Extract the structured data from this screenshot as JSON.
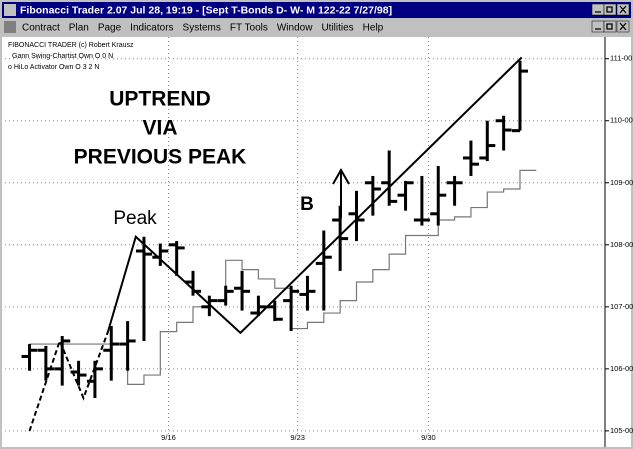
{
  "window": {
    "title": "Fibonacci Trader 2.07 Jul 28,  19:19 - [Sept T-Bonds D- W- M  122-22 7/27/98]",
    "menu": [
      "Contract",
      "Plan",
      "Page",
      "Indicators",
      "Systems",
      "FT Tools",
      "Window",
      "Utilities",
      "Help"
    ]
  },
  "chart_data": {
    "type": "ohlc",
    "legend": [
      "FIBONACCI TRADER (c) Robert Krausz",
      "Gann Swing-Chartist Own O 0 N",
      "o HiLo Activator Own O 3 2 N"
    ],
    "annotations": [
      "UPTREND",
      "VIA",
      "PREVIOUS PEAK",
      "Peak",
      "B"
    ],
    "xlim": [
      -1.5,
      35.2
    ],
    "xticks": [
      {
        "value": 8.5,
        "label": "9/16"
      },
      {
        "value": 16.4,
        "label": "9/23"
      },
      {
        "value": 24.4,
        "label": "9/30"
      }
    ],
    "ylim": [
      104.95,
      111.35
    ],
    "yticks": [
      {
        "value": 105,
        "label": "105-00"
      },
      {
        "value": 106,
        "label": "106-00"
      },
      {
        "value": 107,
        "label": "107-00"
      },
      {
        "value": 108,
        "label": "108-00"
      },
      {
        "value": 109,
        "label": "109-00"
      },
      {
        "value": 110,
        "label": "110-00"
      },
      {
        "value": 111,
        "label": "111-00"
      }
    ],
    "grid": true,
    "color": "#000000",
    "bars": [
      [
        106.2,
        106.4,
        105.97,
        106.3
      ],
      [
        106.3,
        106.37,
        105.81,
        106.0
      ],
      [
        106.0,
        106.53,
        105.73,
        106.45
      ],
      [
        105.95,
        106.13,
        105.73,
        105.9
      ],
      [
        105.8,
        106.13,
        105.53,
        106.0
      ],
      [
        106.3,
        106.69,
        105.81,
        106.4
      ],
      [
        106.4,
        106.77,
        105.97,
        106.45
      ],
      [
        107.9,
        108.13,
        106.45,
        107.85
      ],
      [
        107.8,
        108.02,
        107.66,
        107.9
      ],
      [
        108.0,
        108.06,
        107.5,
        107.95
      ],
      [
        107.4,
        107.58,
        107.18,
        107.25
      ],
      [
        107.0,
        107.18,
        106.85,
        107.1
      ],
      [
        107.1,
        107.34,
        107.02,
        107.25
      ],
      [
        107.3,
        107.58,
        106.94,
        107.25
      ],
      [
        106.9,
        107.18,
        106.85,
        107.0
      ],
      [
        107.0,
        107.1,
        106.77,
        106.8
      ],
      [
        107.1,
        107.34,
        106.61,
        107.25
      ],
      [
        107.2,
        107.5,
        106.94,
        107.25
      ],
      [
        107.7,
        108.23,
        106.94,
        107.8
      ],
      [
        108.4,
        108.63,
        107.58,
        108.1
      ],
      [
        108.5,
        108.87,
        108.06,
        108.4
      ],
      [
        109.0,
        109.11,
        108.47,
        108.9
      ],
      [
        109.0,
        109.52,
        108.63,
        108.7
      ],
      [
        108.8,
        109.03,
        108.55,
        109.0
      ],
      [
        108.4,
        109.11,
        108.31,
        108.4
      ],
      [
        108.5,
        109.27,
        108.31,
        108.8
      ],
      [
        109.0,
        109.11,
        108.63,
        109.0
      ],
      [
        109.4,
        109.68,
        109.11,
        109.3
      ],
      [
        109.4,
        110.0,
        109.35,
        109.6
      ],
      [
        110.0,
        110.08,
        109.52,
        109.85
      ],
      [
        109.84,
        110.97,
        109.84,
        110.8
      ]
    ],
    "lines": [
      {
        "style": "dashed",
        "color": "#000000",
        "x": [
          0,
          1.85,
          3.3,
          4.8
        ],
        "values": [
          105.0,
          106.45,
          105.53,
          106.6
        ]
      },
      {
        "style": "solid",
        "color": "#000000",
        "x": [
          4.8,
          6.5,
          12.9,
          30.1
        ],
        "values": [
          106.6,
          108.13,
          106.58,
          111.02
        ]
      }
    ],
    "hilo": {
      "color": "#777777",
      "values": [
        106.4,
        106.4,
        106.4,
        106.4,
        106.4,
        106.4,
        105.75,
        105.9,
        106.6,
        106.75,
        107.0,
        107.1,
        107.75,
        107.6,
        107.45,
        107.3,
        106.65,
        106.75,
        106.9,
        107.1,
        107.4,
        107.6,
        107.85,
        108.15,
        108.15,
        108.4,
        108.45,
        108.6,
        108.85,
        108.9,
        109.2
      ]
    }
  }
}
